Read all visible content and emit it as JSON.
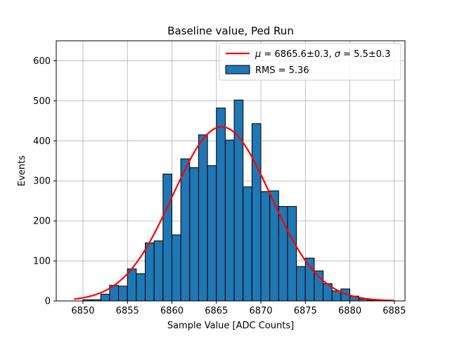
{
  "chart_data": {
    "type": "bar",
    "title": "Baseline value, Ped Run",
    "xlabel": "Sample Value [ADC Counts]",
    "ylabel": "Events",
    "xlim": [
      6847,
      6886.2
    ],
    "ylim": [
      0,
      650
    ],
    "xticks": [
      6850,
      6855,
      6860,
      6865,
      6870,
      6875,
      6880,
      6885
    ],
    "yticks": [
      0,
      100,
      200,
      300,
      400,
      500,
      600
    ],
    "grid": true,
    "legend_position": "upper-right",
    "colors": {
      "bar_fill": "#1f77b4",
      "bar_edge": "#000000",
      "fit_line": "#ff0000",
      "grid": "#b0b0b0"
    },
    "histogram": {
      "name": "RMS = 5.36",
      "bin_edges": [
        6849,
        6850,
        6851,
        6852,
        6853,
        6854,
        6855,
        6856,
        6857,
        6858,
        6859,
        6860,
        6861,
        6862,
        6863,
        6864,
        6865,
        6866,
        6867,
        6868,
        6869,
        6870,
        6871,
        6872,
        6873,
        6874,
        6875,
        6876,
        6877,
        6878,
        6879,
        6880,
        6881,
        6882,
        6883,
        6884,
        6885
      ],
      "counts": [
        0,
        3,
        3,
        17,
        39,
        37,
        80,
        68,
        145,
        150,
        317,
        165,
        355,
        333,
        415,
        338,
        482,
        402,
        502,
        285,
        443,
        273,
        275,
        236,
        236,
        86,
        107,
        75,
        43,
        25,
        30,
        12,
        5,
        2,
        1,
        0
      ]
    },
    "fit": {
      "name": "μ = 6865.6±0.3, σ = 5.5±0.3",
      "mu": 6865.6,
      "sigma": 5.5,
      "amplitude": 435,
      "x_range": [
        6849,
        6885
      ]
    }
  },
  "legend": {
    "fit_label_mu": "μ",
    "fit_label_mu_rest": " = 6865.6±0.3, ",
    "fit_label_sigma": "σ",
    "fit_label_sigma_rest": " = 5.5±0.3",
    "hist_label": "RMS = 5.36"
  }
}
